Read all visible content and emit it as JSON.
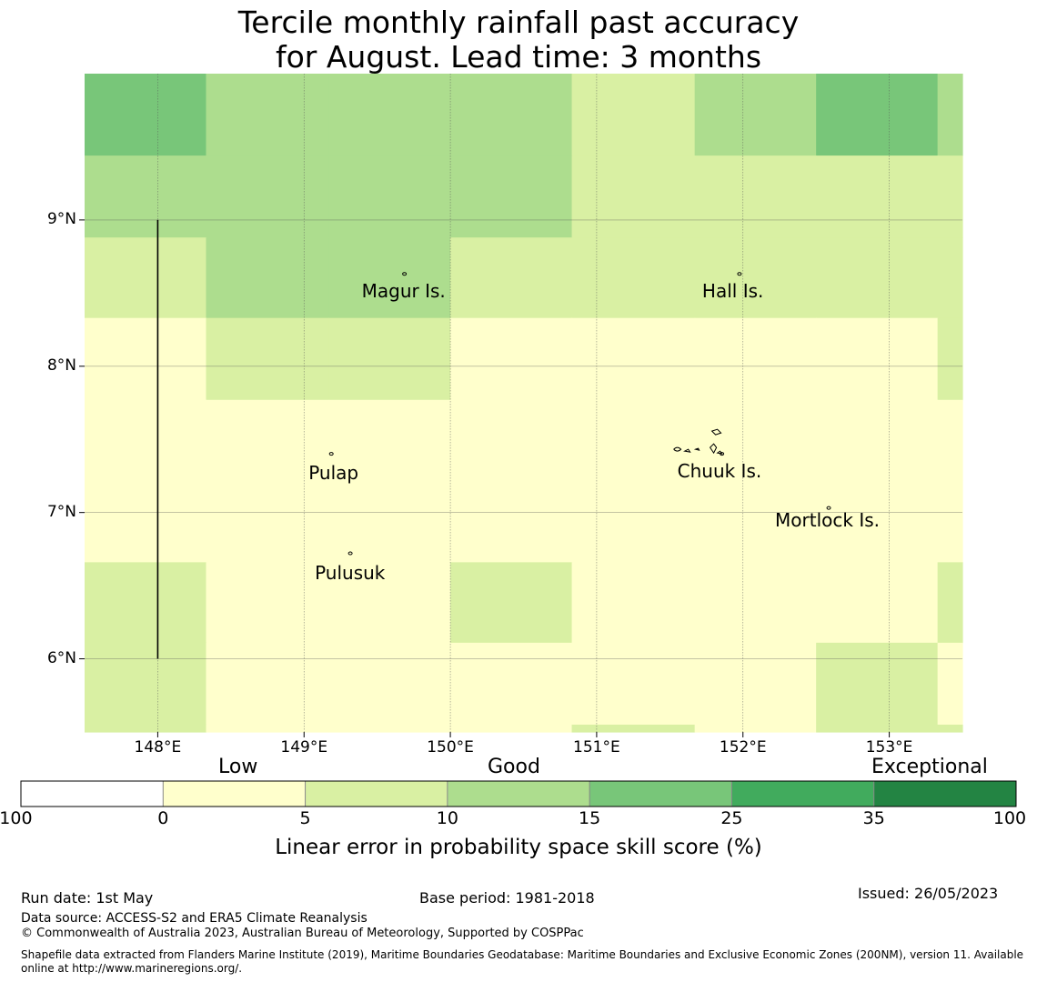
{
  "title": {
    "line1": "Tercile monthly rainfall past accuracy",
    "line2": "for August. Lead time: 3 months"
  },
  "map": {
    "lon_range": [
      147.5,
      153.5
    ],
    "lat_range": [
      5.5,
      10.0
    ],
    "lon_ticks": [
      {
        "value": 148,
        "label": "148°E"
      },
      {
        "value": 149,
        "label": "149°E"
      },
      {
        "value": 150,
        "label": "150°E"
      },
      {
        "value": 151,
        "label": "151°E"
      },
      {
        "value": 152,
        "label": "152°E"
      },
      {
        "value": 153,
        "label": "153°E"
      }
    ],
    "lat_ticks": [
      {
        "value": 9,
        "label": "9°N"
      },
      {
        "value": 8,
        "label": "8°N"
      },
      {
        "value": 7,
        "label": "7°N"
      },
      {
        "value": 6,
        "label": "6°N"
      }
    ],
    "grid": true,
    "col_edges": [
      147.5,
      148.33,
      149.17,
      150.0,
      150.83,
      151.67,
      152.5,
      153.33,
      153.5
    ],
    "row_edges": [
      10.0,
      9.44,
      8.88,
      8.33,
      7.77,
      7.22,
      6.66,
      6.11,
      5.55,
      5.5
    ],
    "cell_classes": [
      [
        3,
        2,
        2,
        2,
        1,
        2,
        3,
        2
      ],
      [
        2,
        2,
        2,
        2,
        1,
        1,
        1,
        1
      ],
      [
        1,
        2,
        2,
        1,
        1,
        1,
        1,
        1
      ],
      [
        0,
        1,
        1,
        0,
        0,
        0,
        0,
        1
      ],
      [
        0,
        0,
        0,
        0,
        0,
        0,
        0,
        0
      ],
      [
        0,
        0,
        0,
        0,
        0,
        0,
        0,
        0
      ],
      [
        1,
        0,
        0,
        1,
        0,
        0,
        0,
        1
      ],
      [
        1,
        0,
        0,
        0,
        0,
        0,
        1,
        0
      ],
      [
        1,
        0,
        0,
        0,
        1,
        0,
        1,
        1
      ]
    ],
    "boundary_line": {
      "lon": 148.0,
      "lat_from": 6.0,
      "lat_to": 9.0
    },
    "places": [
      {
        "name": "Magur Is.",
        "lon": 149.68,
        "lat": 8.6
      },
      {
        "name": "Hall Is.",
        "lon": 151.97,
        "lat": 8.6
      },
      {
        "name": "Pulap",
        "lon": 149.18,
        "lat": 7.37
      },
      {
        "name": "Chuuk Is.",
        "lon": 151.85,
        "lat": 7.37
      },
      {
        "name": "Mortlock Is.",
        "lon": 152.58,
        "lat": 7.0
      },
      {
        "name": "Pulusuk",
        "lon": 149.31,
        "lat": 6.69
      }
    ]
  },
  "colorbar": {
    "category_labels": [
      "Low",
      "Good",
      "Exceptional"
    ],
    "ticks": [
      "-100",
      "0",
      "5",
      "10",
      "15",
      "25",
      "35",
      "100"
    ],
    "colors": [
      "#ffffff",
      "#ffffcc",
      "#d9f0a3",
      "#addd8e",
      "#78c679",
      "#41ab5d",
      "#238443"
    ],
    "label": "Linear error in probability space skill score (%)"
  },
  "footer": {
    "run_date": "Run date: 1st May",
    "base_period": "Base period: 1981-2018",
    "issued": "Issued: 26/05/2023",
    "data_source": "Data source: ACCESS-S2 and ERA5 Climate Reanalysis",
    "copyright": "© Commonwealth of Australia 2023, Australian Bureau of Meteorology, Supported by COSPPac",
    "shapefile": "Shapefile data extracted from Flanders Marine Institute (2019), Maritime Boundaries Geodatabase: Maritime Boundaries and Exclusive Economic Zones (200NM), version 11. Available online at http://www.marineregions.org/."
  }
}
